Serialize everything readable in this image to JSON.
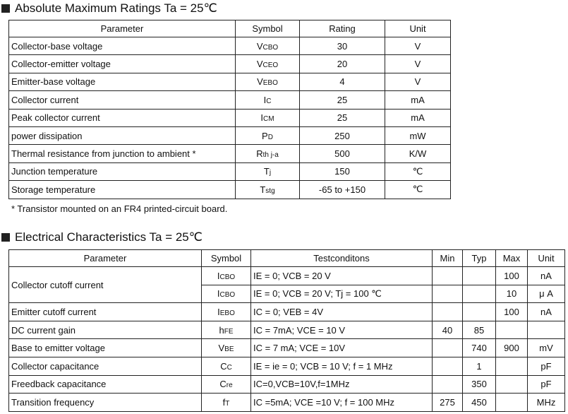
{
  "amr": {
    "title": "Absolute Maximum Ratings Ta = 25℃",
    "headers": [
      "Parameter",
      "Symbol",
      "Rating",
      "Unit"
    ],
    "rows": [
      {
        "param": "Collector-base voltage",
        "sym": "V",
        "sub": "CBO",
        "rating": "30",
        "unit": "V"
      },
      {
        "param": "Collector-emitter voltage",
        "sym": "V",
        "sub": "CEO",
        "rating": "20",
        "unit": "V"
      },
      {
        "param": "Emitter-base voltage",
        "sym": "V",
        "sub": "EBO",
        "rating": "4",
        "unit": "V"
      },
      {
        "param": "Collector current",
        "sym": "I",
        "sub": "C",
        "rating": "25",
        "unit": "mA"
      },
      {
        "param": "Peak collector current",
        "sym": "I",
        "sub": "CM",
        "rating": "25",
        "unit": "mA"
      },
      {
        "param": " power dissipation",
        "sym": "P",
        "sub": "D",
        "rating": "250",
        "unit": "mW"
      },
      {
        "param": "Thermal resistance from junction to ambient  *",
        "sym": "R",
        "sub": "th j-a",
        "rating": "500",
        "unit": "K/W"
      },
      {
        "param": "Junction temperature",
        "sym": "T",
        "sub": "j",
        "rating": "150",
        "unit": "℃"
      },
      {
        "param": "Storage temperature",
        "sym": "T",
        "sub": "stg",
        "rating": "-65 to +150",
        "unit": "℃"
      }
    ],
    "footnote": "* Transistor mounted on an FR4 printed-circuit board."
  },
  "ec": {
    "title": "Electrical Characteristics Ta = 25℃",
    "headers": [
      "Parameter",
      "Symbol",
      "Testconditons",
      "Min",
      "Typ",
      "Max",
      "Unit"
    ],
    "rows": [
      {
        "param": "Collector cutoff current",
        "sym": "I",
        "sub": "CBO",
        "cond": "IE = 0; VCB = 20 V",
        "min": "",
        "typ": "",
        "max": "100",
        "unit": "nA"
      },
      {
        "param": "",
        "sym": "I",
        "sub": "CBO",
        "cond": "IE = 0; VCB = 20 V; Tj = 100 ℃",
        "min": "",
        "typ": "",
        "max": "10",
        "unit": "μ A"
      },
      {
        "param": "Emitter cutoff current",
        "sym": "I",
        "sub": "EBO",
        "cond": "IC = 0; VEB = 4V",
        "min": "",
        "typ": "",
        "max": "100",
        "unit": "nA"
      },
      {
        "param": "DC current gain",
        "sym": "h",
        "sub": "FE",
        "cond": "IC = 7mA; VCE = 10 V",
        "min": "40",
        "typ": "85",
        "max": "",
        "unit": ""
      },
      {
        "param": "Base to emitter voltage",
        "sym": "V",
        "sub": "BE",
        "cond": "IC = 7 mA; VCE = 10V",
        "min": "",
        "typ": "740",
        "max": "900",
        "unit": "mV"
      },
      {
        "param": "Collector capacitance",
        "sym": "C",
        "sub": "C",
        "cond": "IE = ie = 0; VCB = 10 V; f = 1 MHz",
        "min": "",
        "typ": "1",
        "max": "",
        "unit": "pF"
      },
      {
        "param": "Freedback capacitance",
        "sym": "C",
        "sub": "re",
        "cond": "IC=0,VCB=10V,f=1MHz",
        "min": "",
        "typ": "350",
        "max": "",
        "unit": "pF"
      },
      {
        "param": "Transition frequency",
        "sym": "f",
        "sub": "T",
        "cond": "IC =5mA; VCE =10 V; f = 100 MHz",
        "min": "275",
        "typ": "450",
        "max": "",
        "unit": "MHz"
      }
    ]
  }
}
